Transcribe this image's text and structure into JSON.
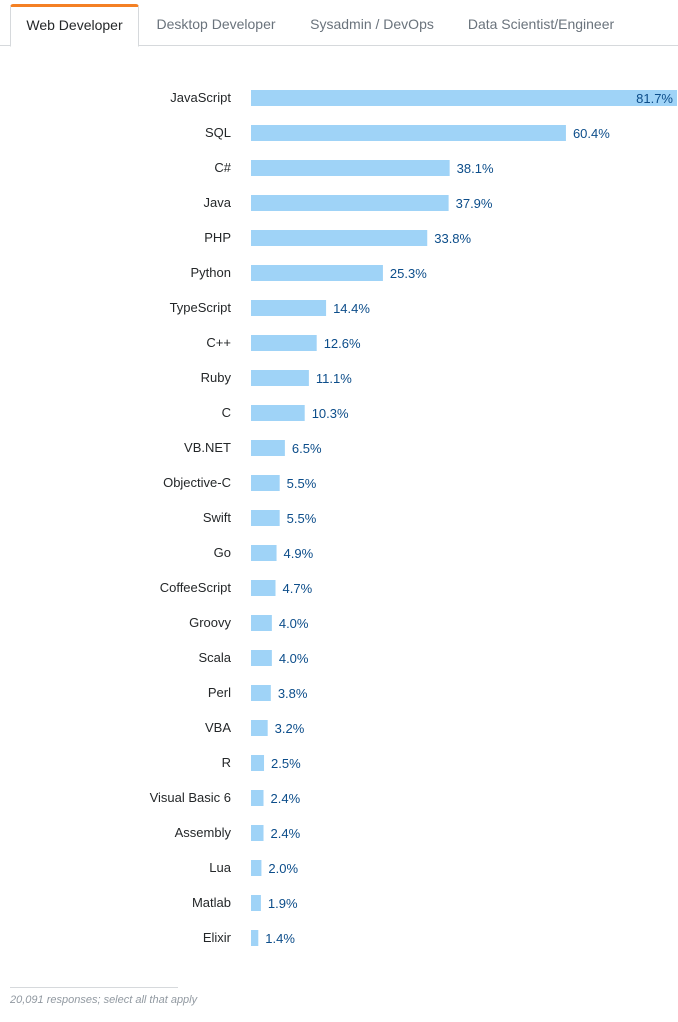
{
  "tabs": [
    {
      "label": "Web Developer",
      "active": true
    },
    {
      "label": "Desktop Developer",
      "active": false
    },
    {
      "label": "Sysadmin / DevOps",
      "active": false
    },
    {
      "label": "Data Scientist/Engineer",
      "active": false
    }
  ],
  "colors": {
    "accent": "#f48024",
    "bar": "#9fd3f7",
    "value_text": "#0c4d8a"
  },
  "chart_data": {
    "type": "bar",
    "orientation": "horizontal",
    "title": "",
    "xlabel": "",
    "ylabel": "",
    "xlim": [
      0,
      81.7
    ],
    "grid": false,
    "categories": [
      "JavaScript",
      "SQL",
      "C#",
      "Java",
      "PHP",
      "Python",
      "TypeScript",
      "C++",
      "Ruby",
      "C",
      "VB.NET",
      "Objective-C",
      "Swift",
      "Go",
      "CoffeeScript",
      "Groovy",
      "Scala",
      "Perl",
      "VBA",
      "R",
      "Visual Basic 6",
      "Assembly",
      "Lua",
      "Matlab",
      "Elixir"
    ],
    "values": [
      81.7,
      60.4,
      38.1,
      37.9,
      33.8,
      25.3,
      14.4,
      12.6,
      11.1,
      10.3,
      6.5,
      5.5,
      5.5,
      4.9,
      4.7,
      4.0,
      4.0,
      3.8,
      3.2,
      2.5,
      2.4,
      2.4,
      2.0,
      1.9,
      1.4
    ],
    "value_labels": [
      "81.7%",
      "60.4%",
      "38.1%",
      "37.9%",
      "33.8%",
      "25.3%",
      "14.4%",
      "12.6%",
      "11.1%",
      "10.3%",
      "6.5%",
      "5.5%",
      "5.5%",
      "4.9%",
      "4.7%",
      "4.0%",
      "4.0%",
      "3.8%",
      "3.2%",
      "2.5%",
      "2.4%",
      "2.4%",
      "2.0%",
      "1.9%",
      "1.4%"
    ]
  },
  "footnote": "20,091 responses; select all that apply"
}
